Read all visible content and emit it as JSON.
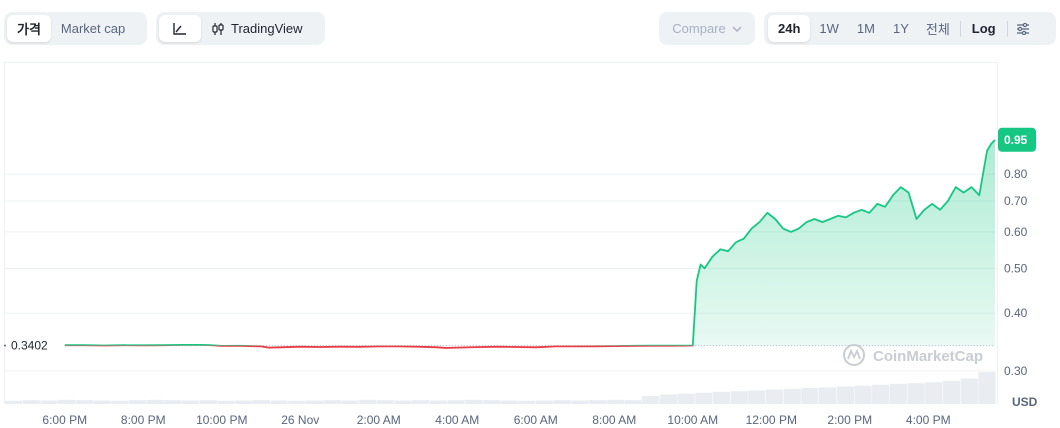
{
  "toolbar": {
    "price_label": "가격",
    "marketcap_label": "Market cap",
    "tradingview_label": "TradingView",
    "compare_label": "Compare",
    "ranges": [
      "24h",
      "1W",
      "1M",
      "1Y",
      "전체"
    ],
    "active_range": "24h",
    "log_label": "Log"
  },
  "watermark": "CoinMarketCap",
  "colors": {
    "up": "#16c784",
    "down": "#ea3943",
    "accent": "#16c784"
  },
  "chart_data": {
    "type": "line",
    "scale": "log",
    "ylabel": "USD",
    "y_ticks": [
      0.3,
      0.4,
      0.5,
      0.6,
      0.7,
      0.8
    ],
    "y_tick_labels": [
      "0.30",
      "0.40",
      "0.50",
      "0.60",
      "0.70",
      "0.80"
    ],
    "ylim": [
      0.27,
      1.4
    ],
    "reference_value": 0.3402,
    "reference_label": "0.3402",
    "current_value": 0.95,
    "current_label": "0.95",
    "x_tick_labels": [
      "6:00 PM",
      "8:00 PM",
      "10:00 PM",
      "26 Nov",
      "2:00 AM",
      "4:00 AM",
      "6:00 AM",
      "8:00 AM",
      "10:00 AM",
      "12:00 PM",
      "2:00 PM",
      "4:00 PM"
    ],
    "x_tick_hours": [
      0,
      2,
      4,
      6,
      8,
      10,
      12,
      14,
      16,
      18,
      20,
      22
    ],
    "x_range_hours": [
      -0.3,
      23.7
    ],
    "series": [
      {
        "x": [
          0.0,
          0.5,
          1.0,
          1.5,
          2.0,
          2.5,
          3.0,
          3.5,
          3.7,
          4.0,
          4.5,
          5.0,
          5.2,
          5.5,
          6.0,
          6.5,
          7.0,
          7.5,
          8.0,
          8.5,
          9.0,
          9.5,
          9.7,
          10.0,
          10.5,
          11.0,
          11.5,
          12.0,
          12.5,
          13.0,
          13.5,
          14.0,
          14.5,
          15.0,
          15.5,
          16.0,
          16.1,
          16.2,
          16.3,
          16.5,
          16.7,
          16.9,
          17.1,
          17.3,
          17.5,
          17.7,
          17.9,
          18.1,
          18.3,
          18.5,
          18.7,
          18.9,
          19.1,
          19.3,
          19.5,
          19.7,
          19.9,
          20.1,
          20.3,
          20.5,
          20.7,
          20.9,
          21.1,
          21.3,
          21.5,
          21.7,
          21.9,
          22.1,
          22.3,
          22.5,
          22.7,
          22.9,
          23.1,
          23.3,
          23.5,
          23.6,
          23.7
        ],
        "y": [
          0.341,
          0.341,
          0.3405,
          0.341,
          0.3408,
          0.341,
          0.3415,
          0.3415,
          0.3412,
          0.3398,
          0.34,
          0.339,
          0.337,
          0.3375,
          0.3385,
          0.338,
          0.3385,
          0.3382,
          0.339,
          0.339,
          0.3385,
          0.3375,
          0.3362,
          0.337,
          0.3378,
          0.3385,
          0.338,
          0.3375,
          0.339,
          0.339,
          0.3392,
          0.3395,
          0.34,
          0.3402,
          0.3402,
          0.3405,
          0.47,
          0.51,
          0.5,
          0.53,
          0.55,
          0.545,
          0.57,
          0.58,
          0.61,
          0.63,
          0.66,
          0.64,
          0.61,
          0.6,
          0.61,
          0.63,
          0.64,
          0.63,
          0.64,
          0.65,
          0.645,
          0.66,
          0.67,
          0.66,
          0.69,
          0.68,
          0.72,
          0.75,
          0.73,
          0.64,
          0.67,
          0.69,
          0.67,
          0.7,
          0.75,
          0.73,
          0.75,
          0.72,
          0.9,
          0.93,
          0.95
        ]
      }
    ],
    "volume": [
      0.1,
      0.12,
      0.11,
      0.13,
      0.12,
      0.11,
      0.1,
      0.12,
      0.13,
      0.12,
      0.11,
      0.12,
      0.1,
      0.11,
      0.12,
      0.11,
      0.1,
      0.11,
      0.12,
      0.11,
      0.13,
      0.12,
      0.11,
      0.12,
      0.11,
      0.12,
      0.13,
      0.12,
      0.11,
      0.1,
      0.11,
      0.12,
      0.11,
      0.12,
      0.13,
      0.12,
      0.25,
      0.3,
      0.32,
      0.35,
      0.38,
      0.4,
      0.42,
      0.45,
      0.47,
      0.5,
      0.52,
      0.55,
      0.57,
      0.6,
      0.63,
      0.65,
      0.68,
      0.72,
      0.8,
      1.0
    ]
  }
}
